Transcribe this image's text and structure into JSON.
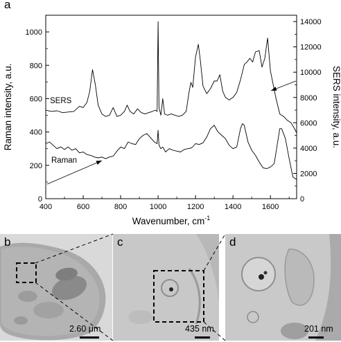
{
  "figure": {
    "panel_a_letter": "a",
    "panel_b_letter": "b",
    "panel_c_letter": "c",
    "panel_d_letter": "d",
    "scalebar_b": "2.60 μm",
    "scalebar_c": "435 nm",
    "scalebar_d": "201 nm"
  },
  "chart_data": {
    "type": "line",
    "xlabel": "Wavenumber, cm",
    "xlabel_superscript": "-1",
    "ylabel_left": "Raman intensity, a.u.",
    "ylabel_right": "SERS intensity, a.u.",
    "xlim": [
      400,
      1740
    ],
    "ylim_left": [
      0,
      1100
    ],
    "ylim_right": [
      0,
      14500
    ],
    "x_ticks": [
      "400",
      "600",
      "800",
      "1000",
      "1200",
      "1400",
      "1600"
    ],
    "y_left_ticks": [
      "0",
      "200",
      "400",
      "600",
      "800",
      "1000"
    ],
    "y_right_ticks": [
      "0",
      "2000",
      "4000",
      "6000",
      "8000",
      "10000",
      "12000",
      "14000"
    ],
    "annotations": [
      {
        "text": "SERS",
        "series": "SERS"
      },
      {
        "text": "Raman",
        "series": "Raman"
      }
    ],
    "series": [
      {
        "name": "SERS",
        "axis": "right",
        "x": [
          400,
          430,
          460,
          490,
          520,
          550,
          580,
          600,
          620,
          635,
          650,
          665,
          680,
          700,
          720,
          740,
          760,
          780,
          800,
          820,
          835,
          850,
          870,
          890,
          910,
          930,
          950,
          970,
          985,
          995,
          1000,
          1005,
          1015,
          1025,
          1035,
          1050,
          1070,
          1090,
          1110,
          1130,
          1150,
          1165,
          1175,
          1185,
          1200,
          1215,
          1225,
          1240,
          1260,
          1280,
          1300,
          1315,
          1330,
          1345,
          1360,
          1380,
          1400,
          1420,
          1440,
          1460,
          1475,
          1490,
          1505,
          1520,
          1540,
          1555,
          1570,
          1585,
          1600,
          1615,
          1630,
          1650,
          1670,
          1690,
          1710,
          1730,
          1740
        ],
        "y": [
          7000,
          6900,
          6950,
          6800,
          6850,
          6900,
          7300,
          7200,
          7600,
          8500,
          10200,
          9000,
          7400,
          6700,
          6500,
          6600,
          7200,
          6500,
          6600,
          6900,
          7400,
          6900,
          6700,
          7100,
          6800,
          6700,
          6800,
          6900,
          7000,
          6900,
          14000,
          7200,
          6600,
          7900,
          6700,
          6600,
          6700,
          6600,
          6500,
          6600,
          6900,
          8400,
          9200,
          8800,
          11200,
          12200,
          11000,
          8900,
          8300,
          8700,
          9300,
          9300,
          9800,
          8500,
          8000,
          7800,
          8000,
          8400,
          9400,
          10600,
          10800,
          11100,
          10800,
          11600,
          11700,
          10400,
          11100,
          12700,
          10100,
          9000,
          7900,
          6700,
          6500,
          6200,
          6000,
          5500,
          5200
        ]
      },
      {
        "name": "Raman",
        "axis": "left",
        "x": [
          400,
          420,
          440,
          460,
          480,
          500,
          520,
          540,
          560,
          580,
          600,
          620,
          640,
          660,
          680,
          700,
          720,
          740,
          760,
          780,
          800,
          820,
          840,
          860,
          880,
          900,
          920,
          940,
          960,
          980,
          995,
          1000,
          1005,
          1015,
          1025,
          1040,
          1060,
          1080,
          1100,
          1120,
          1140,
          1160,
          1180,
          1200,
          1220,
          1240,
          1260,
          1280,
          1300,
          1320,
          1340,
          1360,
          1380,
          1400,
          1420,
          1440,
          1450,
          1460,
          1480,
          1500,
          1520,
          1540,
          1560,
          1580,
          1600,
          1620,
          1640,
          1650,
          1660,
          1680,
          1700,
          1720,
          1740
        ],
        "y": [
          330,
          340,
          320,
          300,
          310,
          295,
          310,
          290,
          300,
          275,
          280,
          265,
          260,
          250,
          245,
          250,
          240,
          250,
          255,
          285,
          310,
          300,
          340,
          330,
          325,
          360,
          380,
          390,
          365,
          340,
          330,
          410,
          320,
          300,
          310,
          280,
          300,
          290,
          285,
          280,
          295,
          300,
          305,
          330,
          325,
          335,
          370,
          420,
          440,
          400,
          380,
          360,
          320,
          300,
          310,
          420,
          450,
          440,
          340,
          290,
          260,
          220,
          185,
          180,
          190,
          210,
          350,
          420,
          420,
          360,
          240,
          130,
          115
        ]
      }
    ]
  }
}
